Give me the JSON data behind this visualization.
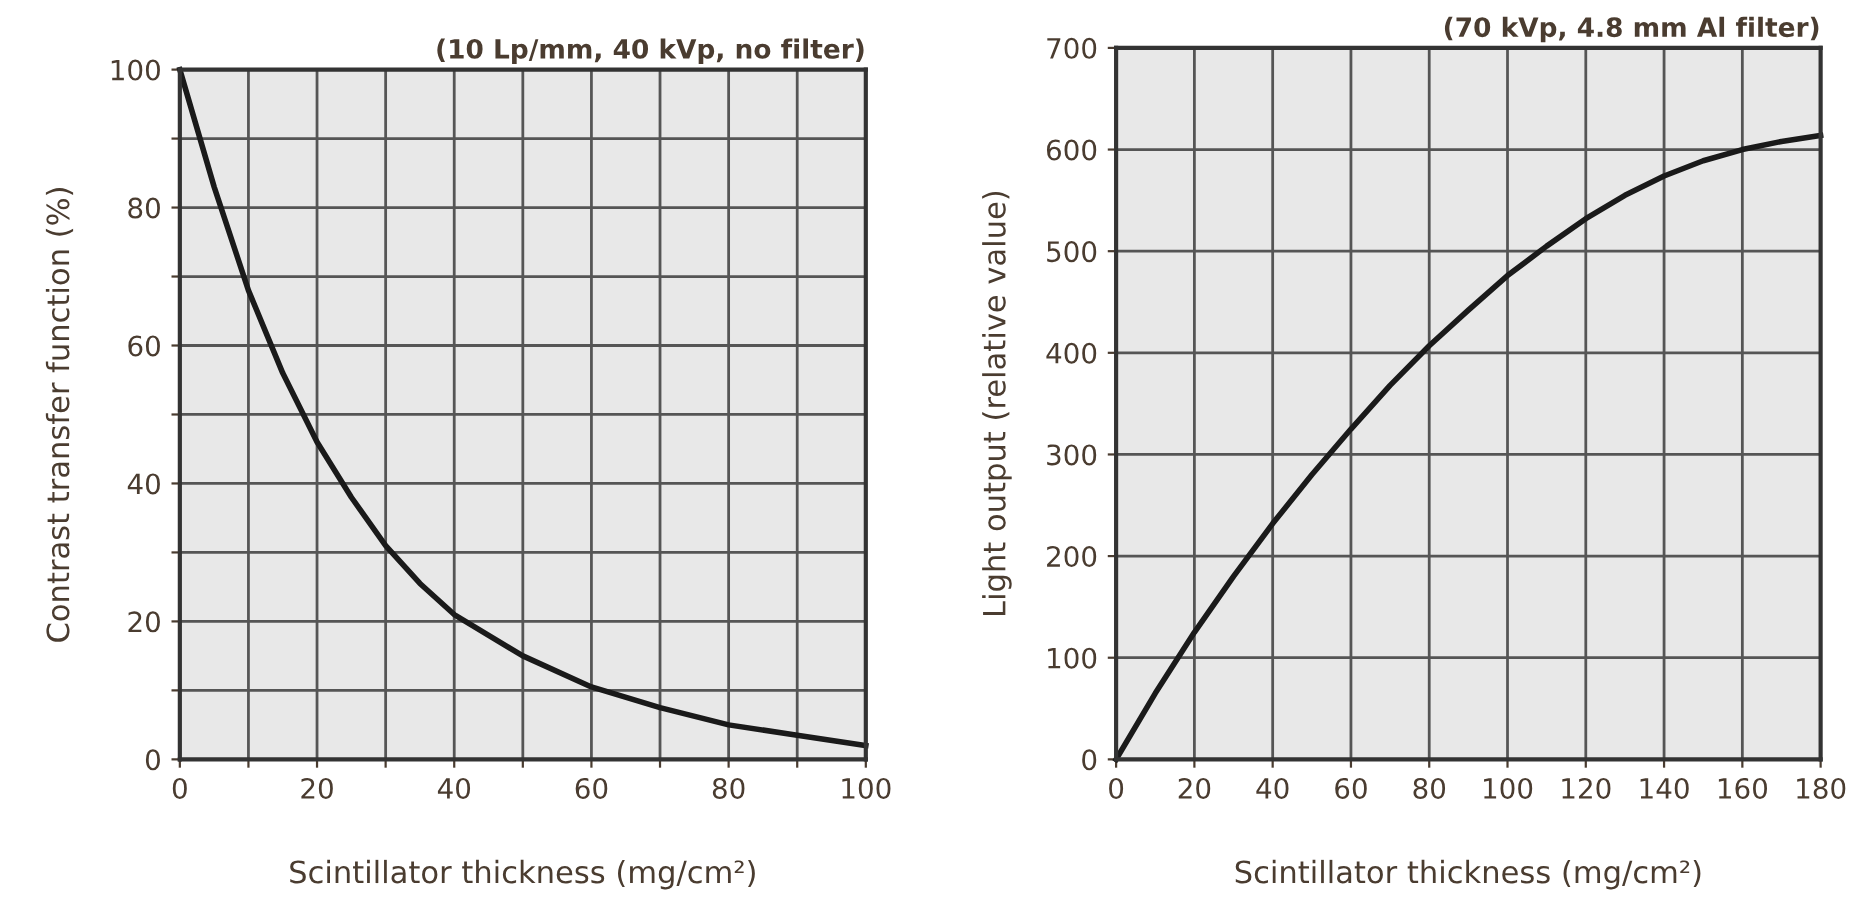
{
  "chart_data": [
    {
      "type": "line",
      "title": "(10 Lp/mm, 40 kVp, no filter)",
      "xlabel": "Scintillator thickness (mg/cm²)",
      "ylabel": "Contrast transfer function (%)",
      "x": [
        0,
        5,
        10,
        15,
        20,
        25,
        30,
        35,
        40,
        50,
        60,
        70,
        80,
        90,
        100
      ],
      "series": [
        {
          "color": "#1a1a1a",
          "values": [
            100,
            83,
            68,
            56,
            46,
            38,
            31,
            25.5,
            21,
            15,
            10.5,
            7.5,
            5,
            3.5,
            2
          ]
        }
      ],
      "xlim": [
        0,
        100
      ],
      "ylim": [
        0,
        100
      ],
      "xticks": [
        0,
        {
          "value": 10,
          "label": null
        },
        20,
        {
          "value": 30,
          "label": null
        },
        40,
        {
          "value": 50,
          "label": null
        },
        60,
        {
          "value": 70,
          "label": null
        },
        80,
        {
          "value": 90,
          "label": null
        },
        100
      ],
      "yticks": [
        0,
        {
          "value": 10,
          "label": null
        },
        20,
        {
          "value": 30,
          "label": null
        },
        40,
        {
          "value": 50,
          "label": null
        },
        60,
        {
          "value": 70,
          "label": null
        },
        80,
        {
          "value": 90,
          "label": null
        },
        100
      ],
      "grid": true,
      "legend": false,
      "marker": "none",
      "line_style": "solid"
    },
    {
      "type": "line",
      "title": "(70 kVp, 4.8 mm Al filter)",
      "xlabel": "Scintillator thickness (mg/cm²)",
      "ylabel": "Light output (relative value)",
      "x": [
        0,
        10,
        20,
        30,
        40,
        50,
        60,
        70,
        80,
        90,
        100,
        110,
        120,
        130,
        140,
        150,
        160,
        170,
        180
      ],
      "series": [
        {
          "color": "#1a1a1a",
          "values": [
            0,
            65,
            125,
            180,
            232,
            280,
            325,
            368,
            407,
            442,
            476,
            505,
            532,
            555,
            574,
            589,
            600,
            608,
            614
          ]
        }
      ],
      "xlim": [
        0,
        180
      ],
      "ylim": [
        0,
        700
      ],
      "xticks": [
        0,
        20,
        40,
        60,
        80,
        100,
        120,
        140,
        160,
        180
      ],
      "yticks": [
        0,
        100,
        200,
        300,
        400,
        500,
        600,
        700
      ],
      "grid": true,
      "legend": false,
      "marker": "none",
      "line_style": "solid"
    }
  ]
}
